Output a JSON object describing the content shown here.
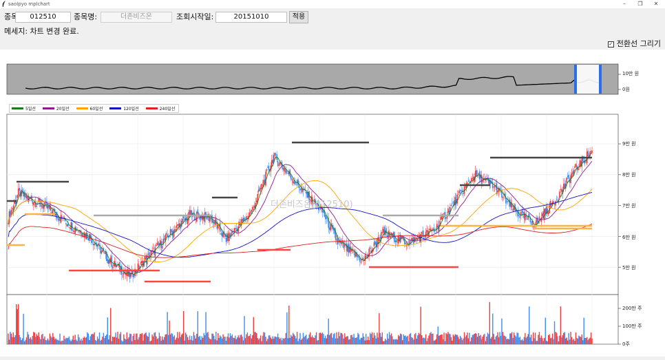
{
  "window": {
    "title": "saolpyo mplchart",
    "min": "–",
    "max": "❐",
    "close": "✕"
  },
  "form": {
    "code_label": "종목코드:",
    "code_value": "012510",
    "name_label": "종목명:",
    "name_value": "더존비즈온",
    "start_label": "조회시작일:",
    "start_value": "20151010",
    "apply_label": "적용"
  },
  "message": "메세지: 차트 변경 완료.",
  "checkbox": {
    "label": "전환선 그리기",
    "checked": true
  },
  "legend": [
    {
      "name": "5일선",
      "color": "#1a7a1a"
    },
    {
      "name": "20일선",
      "color": "#8b1a8b"
    },
    {
      "name": "60일선",
      "color": "#ffa500"
    },
    {
      "name": "120일선",
      "color": "#1010cc"
    },
    {
      "name": "240일선",
      "color": "#e02020"
    }
  ],
  "watermark": "더존비즈온(012510)",
  "overview_axis": [
    "10만 원",
    "0원"
  ],
  "price_axis": [
    "9만 원",
    "8만 원",
    "7만 원",
    "6만 원",
    "5만 원"
  ],
  "volume_axis": [
    "200만 주",
    "100만 주",
    "0주"
  ],
  "colors": {
    "up": "#f03c3c",
    "down": "#3c8cf0",
    "panel_bg": "#a9a9a9",
    "select": "#2a6ef0"
  }
}
